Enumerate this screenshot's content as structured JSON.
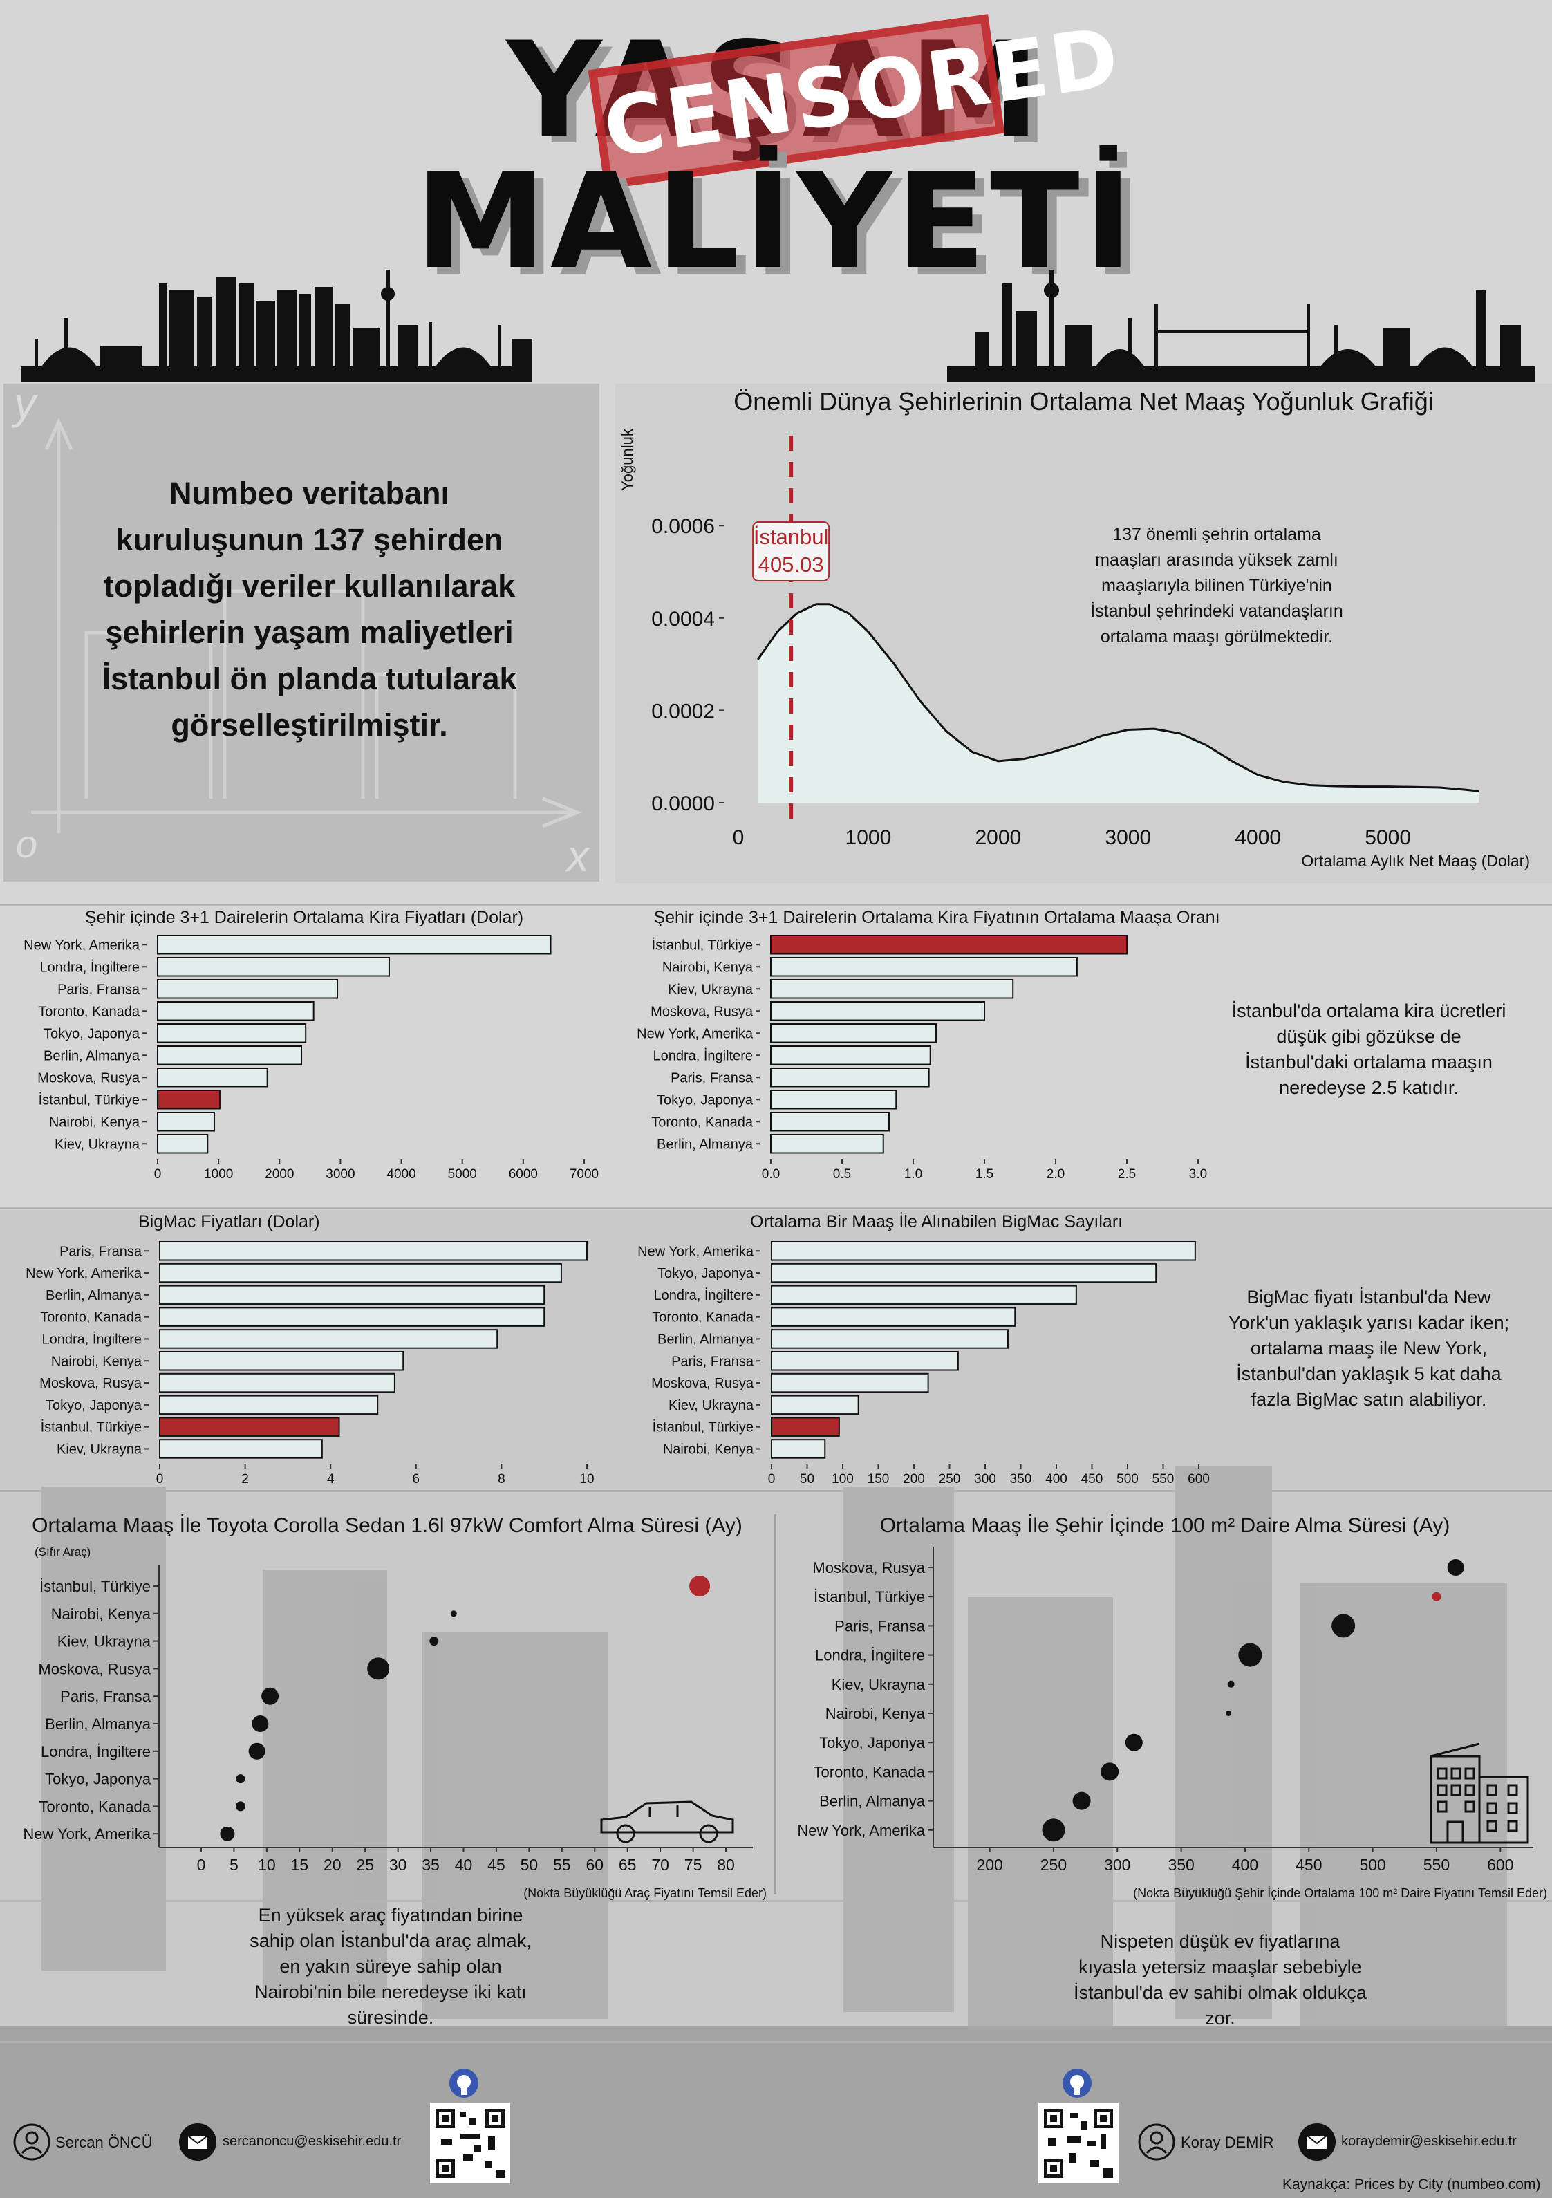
{
  "header": {
    "title_line1": "YAŞAM",
    "title_line2": "MALİYETİ",
    "stamp": "CENSORED"
  },
  "intro": {
    "text": "Numbeo veritabanı kuruluşunun 137 şehirden topladığı veriler kullanılarak şehirlerin yaşam maliyetleri İstanbul ön planda tutularak görselleştirilmiştir.",
    "chalk_y": "y",
    "chalk_o": "o",
    "chalk_x": "x"
  },
  "notes": {
    "density": "137 önemli şehrin ortalama maaşları arasında yüksek zamlı maaşlarıyla bilinen Türkiye'nin İstanbul şehrindeki vatandaşların ortalama maaşı görülmektedir.",
    "rent": "İstanbul'da ortalama kira ücretleri düşük gibi gözükse de İstanbul'daki ortalama maaşın neredeyse 2.5 katıdır.",
    "bigmac": "BigMac fiyatı İstanbul'da New York'un yaklaşık yarısı kadar iken; ortalama maaş ile New York, İstanbul'dan yaklaşık 5 kat daha fazla BigMac satın alabiliyor.",
    "car": "En yüksek araç fiyatından birine sahip olan İstanbul'da araç almak, en yakın süreye sahip olan Nairobi'nin bile neredeyse iki katı süresinde.",
    "house": "Nispeten düşük ev fiyatlarına kıyasla yetersiz maaşlar sebebiyle İstanbul'da ev sahibi olmak oldukça zor."
  },
  "footer": {
    "person1": "Sercan ÖNCÜ",
    "email1": "sercanoncu@eskisehir.edu.tr",
    "person2": "Koray DEMİR",
    "email2": "koraydemir@eskisehir.edu.tr",
    "source": "Kaynakça: Prices by City (numbeo.com)"
  },
  "colors": {
    "highlight": "#b0282c",
    "bar": "#e2eeee",
    "dark": "#111111"
  },
  "chart_data": [
    {
      "id": "density",
      "type": "area",
      "title": "Önemli Dünya Şehirlerinin Ortalama Net Maaş Yoğunluk Grafiği",
      "xlabel": "Ortalama Aylık Net Maaş (Dolar)",
      "ylabel": "Yoğunluk",
      "xlim": [
        0,
        5800
      ],
      "ylim": [
        0,
        0.00078
      ],
      "xticks": [
        "0",
        "1000",
        "2000",
        "3000",
        "4000",
        "5000"
      ],
      "yticks": [
        "0.0000",
        "0.0002",
        "0.0004",
        "0.0006"
      ],
      "x": [
        150,
        300,
        450,
        600,
        700,
        850,
        1000,
        1200,
        1400,
        1600,
        1800,
        2000,
        2200,
        2400,
        2600,
        2800,
        3000,
        3200,
        3400,
        3600,
        3800,
        4000,
        4200,
        4400,
        4600,
        4800,
        5000,
        5200,
        5400,
        5600,
        5700
      ],
      "y": [
        0.00031,
        0.00037,
        0.00041,
        0.00043,
        0.00043,
        0.00041,
        0.00037,
        0.0003,
        0.00022,
        0.000155,
        0.00011,
        9e-05,
        9.5e-05,
        0.000108,
        0.000125,
        0.000145,
        0.000158,
        0.00016,
        0.00015,
        0.000125,
        9e-05,
        6e-05,
        4.5e-05,
        3.8e-05,
        3.6e-05,
        3.5e-05,
        3.5e-05,
        3.4e-05,
        3.3e-05,
        2.8e-05,
        2.5e-05
      ],
      "marker": {
        "label_city": "İstanbul",
        "label_value": "405.03",
        "x": 405.03
      }
    },
    {
      "id": "rent",
      "type": "bar",
      "title": "Şehir içinde 3+1 Dairelerin Ortalama Kira Fiyatları (Dolar)",
      "categories": [
        "New York, Amerika",
        "Londra, İngiltere",
        "Paris, Fransa",
        "Toronto, Kanada",
        "Tokyo, Japonya",
        "Berlin, Almanya",
        "Moskova, Rusya",
        "İstanbul, Türkiye",
        "Nairobi, Kenya",
        "Kiev, Ukrayna"
      ],
      "values": [
        6450,
        3800,
        2950,
        2560,
        2430,
        2360,
        1800,
        1020,
        930,
        820
      ],
      "highlight": "İstanbul, Türkiye",
      "xlim": [
        0,
        7000
      ],
      "xticks": [
        "0",
        "1000",
        "2000",
        "3000",
        "4000",
        "5000",
        "6000",
        "7000"
      ]
    },
    {
      "id": "rent_ratio",
      "type": "bar",
      "title": "Şehir içinde 3+1 Dairelerin Ortalama Kira Fiyatının Ortalama Maaşa Oranı",
      "categories": [
        "İstanbul, Türkiye",
        "Nairobi, Kenya",
        "Kiev, Ukrayna",
        "Moskova, Rusya",
        "New York, Amerika",
        "Londra, İngiltere",
        "Paris, Fransa",
        "Tokyo, Japonya",
        "Toronto, Kanada",
        "Berlin, Almanya"
      ],
      "values": [
        2.5,
        2.15,
        1.7,
        1.5,
        1.16,
        1.12,
        1.11,
        0.88,
        0.83,
        0.79
      ],
      "highlight": "İstanbul, Türkiye",
      "xlim": [
        0,
        3.0
      ],
      "xticks": [
        "0.0",
        "0.5",
        "1.0",
        "1.5",
        "2.0",
        "2.5",
        "3.0"
      ]
    },
    {
      "id": "bigmac",
      "type": "bar",
      "title": "BigMac Fiyatları (Dolar)",
      "categories": [
        "Paris, Fransa",
        "New York, Amerika",
        "Berlin, Almanya",
        "Toronto, Kanada",
        "Londra, İngiltere",
        "Nairobi, Kenya",
        "Moskova, Rusya",
        "Tokyo, Japonya",
        "İstanbul, Türkiye",
        "Kiev, Ukrayna"
      ],
      "values": [
        10.0,
        9.4,
        9.0,
        9.0,
        7.9,
        5.7,
        5.5,
        5.1,
        4.2,
        3.8
      ],
      "highlight": "İstanbul, Türkiye",
      "xlim": [
        0,
        10
      ],
      "xticks": [
        "0",
        "2",
        "4",
        "6",
        "8",
        "10"
      ]
    },
    {
      "id": "bigmac_count",
      "type": "bar",
      "title": "Ortalama Bir Maaş İle Alınabilen BigMac Sayıları",
      "categories": [
        "New York, Amerika",
        "Tokyo, Japonya",
        "Londra, İngiltere",
        "Toronto, Kanada",
        "Berlin, Almanya",
        "Paris, Fransa",
        "Moskova, Rusya",
        "Kiev, Ukrayna",
        "İstanbul, Türkiye",
        "Nairobi, Kenya"
      ],
      "values": [
        595,
        540,
        428,
        342,
        332,
        262,
        220,
        122,
        95,
        75
      ],
      "highlight": "İstanbul, Türkiye",
      "xlim": [
        0,
        600
      ],
      "xticks": [
        "0",
        "50",
        "100",
        "150",
        "200",
        "250",
        "300",
        "350",
        "400",
        "450",
        "500",
        "550",
        "600"
      ]
    },
    {
      "id": "car",
      "type": "scatter",
      "title": "Ortalama Maaş İle Toyota Corolla Sedan 1.6l 97kW Comfort Alma Süresi (Ay)",
      "subtitle": "(Sıfır Araç)",
      "xlabel": "(Nokta Büyüklüğü Araç Fiyatını Temsil Eder)",
      "categories": [
        "İstanbul, Türkiye",
        "Nairobi, Kenya",
        "Kiev, Ukrayna",
        "Moskova, Rusya",
        "Paris, Fransa",
        "Berlin, Almanya",
        "Londra, İngiltere",
        "Tokyo, Japonya",
        "Toronto, Kanada",
        "New York, Amerika"
      ],
      "values": [
        76,
        38.5,
        35.5,
        27,
        10.5,
        9,
        8.5,
        6,
        6,
        4
      ],
      "sizes": [
        30,
        9,
        13,
        32,
        25,
        24,
        24,
        13,
        14,
        21
      ],
      "highlight": "İstanbul, Türkiye",
      "xlim": [
        -2,
        82
      ],
      "xticks": [
        "0",
        "5",
        "10",
        "15",
        "20",
        "25",
        "30",
        "35",
        "40",
        "45",
        "50",
        "55",
        "60",
        "65",
        "70",
        "75",
        "80"
      ]
    },
    {
      "id": "house",
      "type": "scatter",
      "title": "Ortalama Maaş İle Şehir İçinde 100 m² Daire Alma Süresi (Ay)",
      "xlabel": "(Nokta Büyüklüğü Şehir İçinde Ortalama 100 m² Daire Fiyatını Temsil Eder)",
      "categories": [
        "Moskova, Rusya",
        "İstanbul, Türkiye",
        "Paris, Fransa",
        "Londra, İngiltere",
        "Kiev, Ukrayna",
        "Nairobi, Kenya",
        "Tokyo, Japonya",
        "Toronto, Kanada",
        "Berlin, Almanya",
        "New York, Amerika"
      ],
      "values": [
        565,
        550,
        477,
        404,
        389,
        387,
        313,
        294,
        272,
        250
      ],
      "sizes": [
        24,
        13,
        34,
        34,
        10,
        8,
        25,
        26,
        26,
        33
      ],
      "highlight": "İstanbul, Türkiye",
      "xlim": [
        178,
        615
      ],
      "xticks": [
        "200",
        "250",
        "300",
        "350",
        "400",
        "450",
        "500",
        "550",
        "600"
      ]
    }
  ]
}
